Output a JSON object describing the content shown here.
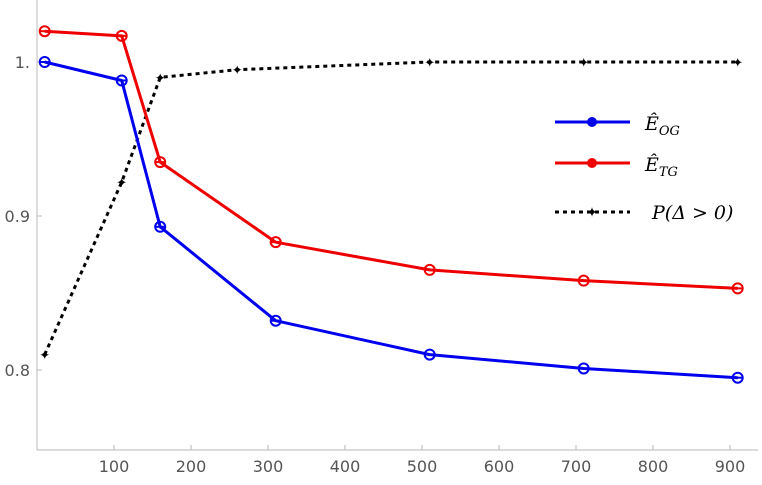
{
  "chart_data": {
    "type": "line",
    "title": "",
    "xlabel": "",
    "ylabel": "",
    "xlim": [
      0,
      930
    ],
    "ylim": [
      0.75,
      1.04
    ],
    "x_ticks": [
      100,
      200,
      300,
      400,
      500,
      600,
      700,
      800,
      900
    ],
    "y_ticks": [
      0.8,
      0.9,
      1.0
    ],
    "x_tick_labels": [
      "100",
      "200",
      "300",
      "400",
      "500",
      "600",
      "700",
      "800",
      "900"
    ],
    "y_tick_labels": [
      "0.8",
      "0.9",
      "1."
    ],
    "grid": false,
    "legend_position": "right",
    "series": [
      {
        "name": "Ê_OG",
        "color": "#0000ee",
        "style": "solid",
        "marker": "circle",
        "x": [
          10,
          110,
          160,
          310,
          510,
          710,
          910
        ],
        "y": [
          1.0,
          0.988,
          0.893,
          0.832,
          0.81,
          0.801,
          0.795
        ]
      },
      {
        "name": "Ê_TG",
        "color": "#ee0000",
        "style": "solid",
        "marker": "circle",
        "x": [
          10,
          110,
          160,
          310,
          510,
          710,
          910
        ],
        "y": [
          1.02,
          1.017,
          0.935,
          0.883,
          0.865,
          0.858,
          0.853
        ]
      },
      {
        "name": "P(Δ > 0)",
        "color": "#000000",
        "style": "dotted",
        "marker": "arrow",
        "x": [
          10,
          110,
          160,
          260,
          510,
          710,
          910
        ],
        "y": [
          0.81,
          0.922,
          0.99,
          0.995,
          1.0,
          1.0,
          1.0
        ]
      }
    ]
  }
}
